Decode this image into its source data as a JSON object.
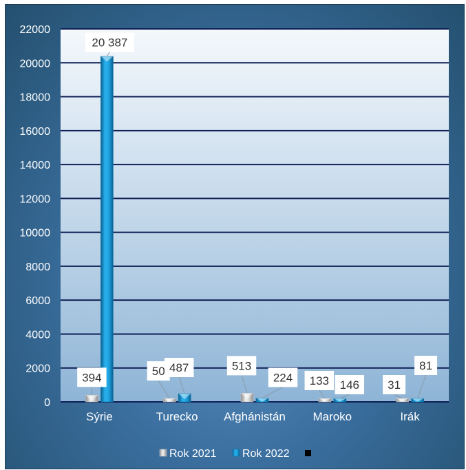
{
  "chart_data": {
    "type": "bar",
    "categories": [
      "Sýrie",
      "Turecko",
      "Afghánistán",
      "Maroko",
      "Irák"
    ],
    "series": [
      {
        "name": "Rok 2021",
        "values": [
          394,
          50,
          513,
          133,
          31
        ],
        "labels": [
          "394",
          "50",
          "513",
          "133",
          "31"
        ],
        "color": "#d9d9d9"
      },
      {
        "name": "Rok 2022",
        "values": [
          20387,
          487,
          224,
          146,
          81
        ],
        "labels": [
          "20 387",
          "487",
          "224",
          "146",
          "81"
        ],
        "color": "#1a9ad6"
      }
    ],
    "ylim": [
      0,
      22000
    ],
    "yticks": [
      0,
      2000,
      4000,
      6000,
      8000,
      10000,
      12000,
      14000,
      16000,
      18000,
      20000,
      22000
    ],
    "grid": true,
    "legend_position": "bottom",
    "title": "",
    "xlabel": "",
    "ylabel": ""
  }
}
